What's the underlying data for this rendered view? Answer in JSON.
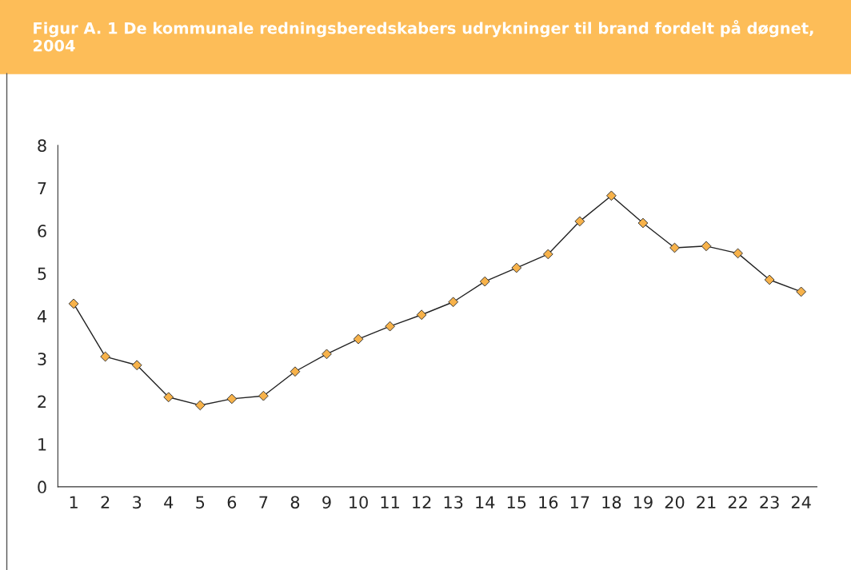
{
  "chart_data": {
    "type": "line",
    "title": "Figur A. 1 De kommunale redningsberedskabers udrykninger til brand fordelt på døgnet, 2004",
    "categories": [
      "1",
      "2",
      "3",
      "4",
      "5",
      "6",
      "7",
      "8",
      "9",
      "10",
      "11",
      "12",
      "13",
      "14",
      "15",
      "16",
      "17",
      "18",
      "19",
      "20",
      "21",
      "22",
      "23",
      "24"
    ],
    "series": [
      {
        "color": "#f7b24a",
        "values": [
          4.29,
          3.05,
          2.85,
          2.1,
          1.91,
          2.06,
          2.13,
          2.7,
          3.11,
          3.46,
          3.76,
          4.03,
          4.33,
          4.81,
          5.13,
          5.45,
          6.22,
          6.82,
          6.18,
          5.6,
          5.64,
          5.47,
          4.85,
          4.57
        ]
      }
    ],
    "ylim": [
      0,
      8
    ],
    "yticks": [
      0,
      1,
      2,
      3,
      4,
      5,
      6,
      7,
      8
    ],
    "grid": false,
    "marker": "diamond",
    "line_style": "solid"
  }
}
